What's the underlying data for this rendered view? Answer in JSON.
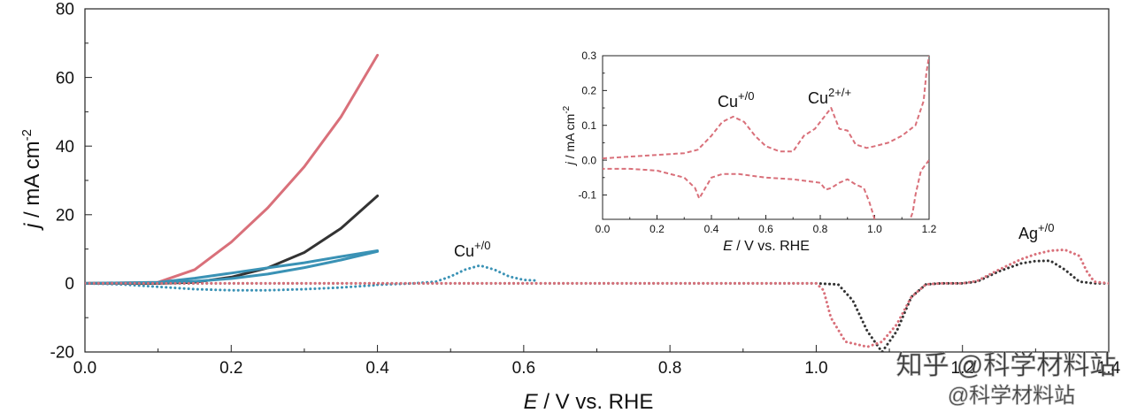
{
  "chart_data": [
    {
      "type": "line",
      "xlabel_italic": "E",
      "xlabel_rest": " / V vs. RHE",
      "ylabel_italic": "j",
      "ylabel_rest": " / mA cm",
      "ylabel_sup": "-2",
      "xlim": [
        0.0,
        1.4
      ],
      "ylim": [
        -20,
        80
      ],
      "xticks": [
        0.0,
        0.2,
        0.4,
        0.6,
        0.8,
        1.0,
        1.2,
        1.4
      ],
      "xtick_labels": [
        "0.0",
        "0.2",
        "0.4",
        "0.6",
        "0.8",
        "1.0",
        "1.2",
        "1.4"
      ],
      "yticks": [
        -20,
        0,
        20,
        40,
        60,
        80
      ],
      "ytick_labels": [
        "-20",
        "0",
        "20",
        "40",
        "60",
        "80"
      ],
      "colors": {
        "red": "#d9707a",
        "black": "#333333",
        "blue": "#3a92b5"
      },
      "annotations": [
        {
          "text": "Cu",
          "sup": "+/0",
          "x": 0.535,
          "y": 8
        },
        {
          "text": "Ag",
          "sup": "+/0",
          "x": 1.34,
          "y": 13
        }
      ],
      "series": [
        {
          "name": "red-solid",
          "color": "red",
          "style": "solid",
          "x": [
            0.0,
            0.1,
            0.15,
            0.2,
            0.25,
            0.3,
            0.35,
            0.4
          ],
          "y": [
            0.0,
            0.3,
            4.0,
            12.0,
            22.0,
            34.0,
            48.5,
            66.5
          ]
        },
        {
          "name": "black-solid",
          "color": "black",
          "style": "solid",
          "x": [
            0.0,
            0.1,
            0.15,
            0.2,
            0.25,
            0.3,
            0.35,
            0.4
          ],
          "y": [
            0.0,
            0.0,
            0.3,
            1.8,
            4.5,
            9.0,
            16.0,
            25.5
          ]
        },
        {
          "name": "blue-solid",
          "color": "blue",
          "style": "solid",
          "x": [
            0.0,
            0.1,
            0.15,
            0.2,
            0.25,
            0.3,
            0.35,
            0.4
          ],
          "y": [
            0.0,
            0.3,
            1.5,
            3.0,
            4.5,
            6.0,
            7.8,
            9.5
          ]
        },
        {
          "name": "blue-solid-return",
          "color": "blue",
          "style": "solid",
          "x": [
            0.4,
            0.35,
            0.3,
            0.25,
            0.2,
            0.15,
            0.1
          ],
          "y": [
            9.3,
            6.8,
            4.6,
            2.7,
            1.4,
            0.6,
            0.2
          ]
        },
        {
          "name": "blue-dotted-cathodic",
          "color": "blue",
          "style": "dotted",
          "x": [
            0.0,
            0.05,
            0.1,
            0.15,
            0.2,
            0.25,
            0.3,
            0.35,
            0.4
          ],
          "y": [
            0.0,
            -0.3,
            -1.0,
            -1.7,
            -2.0,
            -2.0,
            -1.7,
            -1.2,
            -0.5
          ]
        },
        {
          "name": "blue-dotted-anodic",
          "color": "blue",
          "style": "dotted",
          "x": [
            0.4,
            0.45,
            0.48,
            0.5,
            0.52,
            0.54,
            0.56,
            0.58,
            0.6,
            0.62
          ],
          "y": [
            -0.4,
            0.0,
            0.5,
            2.0,
            4.0,
            5.2,
            4.0,
            2.0,
            1.0,
            0.8
          ]
        },
        {
          "name": "black-dotted",
          "color": "black",
          "style": "dotted",
          "x": [
            0.0,
            0.2,
            0.4,
            0.6,
            0.8,
            1.0,
            1.03,
            1.05,
            1.07,
            1.09,
            1.11,
            1.13,
            1.15,
            1.17,
            1.2,
            1.22,
            1.25,
            1.28,
            1.3,
            1.32,
            1.34,
            1.36,
            1.38,
            1.4
          ],
          "y": [
            0.0,
            0.0,
            0.0,
            0.0,
            0.0,
            0.0,
            -0.3,
            -5.0,
            -14.0,
            -20.0,
            -14.0,
            -4.0,
            -0.3,
            0.0,
            0.0,
            0.5,
            3.5,
            5.8,
            6.5,
            6.6,
            4.0,
            0.5,
            0.0,
            0.0
          ]
        },
        {
          "name": "red-dotted",
          "color": "red",
          "style": "dotted",
          "x": [
            0.0,
            0.2,
            0.4,
            0.6,
            0.8,
            1.0,
            1.01,
            1.02,
            1.04,
            1.07,
            1.09,
            1.11,
            1.13,
            1.15,
            1.17,
            1.2,
            1.22,
            1.25,
            1.28,
            1.3,
            1.32,
            1.34,
            1.36,
            1.37,
            1.38,
            1.4
          ],
          "y": [
            0.0,
            0.0,
            0.0,
            0.0,
            0.0,
            0.0,
            -2.0,
            -10.0,
            -17.0,
            -18.5,
            -17.0,
            -12.0,
            -4.0,
            -0.3,
            0.0,
            0.0,
            0.7,
            4.0,
            7.0,
            8.5,
            9.5,
            9.8,
            8.0,
            3.5,
            0.5,
            0.0
          ]
        }
      ]
    },
    {
      "type": "line",
      "name": "inset",
      "xlabel_italic": "E",
      "xlabel_rest": " / V vs. RHE",
      "ylabel_italic": "j",
      "ylabel_rest": " / mA cm",
      "ylabel_sup": "-2",
      "xlim": [
        0.0,
        1.2
      ],
      "ylim": [
        -0.17,
        0.3
      ],
      "xticks": [
        0.0,
        0.2,
        0.4,
        0.6,
        0.8,
        1.0,
        1.2
      ],
      "xtick_labels": [
        "0.0",
        "0.2",
        "0.4",
        "0.6",
        "0.8",
        "1.0",
        "1.2"
      ],
      "yticks": [
        -0.1,
        0.0,
        0.1,
        0.2,
        0.3
      ],
      "ytick_labels": [
        "-0.1",
        "0.0",
        "0.1",
        "0.2",
        "0.3"
      ],
      "annotations": [
        {
          "text": "Cu",
          "sup": "+/0",
          "x": 0.5,
          "y": 0.155
        },
        {
          "text": "Cu",
          "sup": "2+/+",
          "x": 0.83,
          "y": 0.18
        }
      ],
      "series": [
        {
          "name": "inset-anodic",
          "color": "red",
          "style": "dashed",
          "x": [
            0.0,
            0.1,
            0.2,
            0.3,
            0.35,
            0.4,
            0.44,
            0.48,
            0.52,
            0.56,
            0.6,
            0.65,
            0.7,
            0.74,
            0.78,
            0.81,
            0.84,
            0.87,
            0.9,
            0.93,
            0.97,
            1.0,
            1.05,
            1.1,
            1.15,
            1.18,
            1.19,
            1.2
          ],
          "y": [
            0.005,
            0.01,
            0.015,
            0.02,
            0.03,
            0.07,
            0.11,
            0.125,
            0.11,
            0.07,
            0.04,
            0.025,
            0.025,
            0.07,
            0.09,
            0.12,
            0.15,
            0.09,
            0.085,
            0.045,
            0.035,
            0.04,
            0.05,
            0.07,
            0.1,
            0.17,
            0.25,
            0.3
          ]
        },
        {
          "name": "inset-cathodic",
          "color": "red",
          "style": "dashed",
          "x": [
            1.2,
            1.17,
            1.15,
            1.14,
            1.13
          ],
          "y": [
            0.0,
            -0.03,
            -0.1,
            -0.15,
            -0.17
          ]
        },
        {
          "name": "inset-cathodic-2",
          "color": "red",
          "style": "dashed",
          "x": [
            1.0,
            0.98,
            0.96,
            0.93,
            0.9,
            0.87,
            0.84,
            0.82,
            0.8,
            0.75,
            0.7,
            0.6,
            0.5,
            0.44,
            0.4,
            0.37,
            0.355,
            0.34,
            0.3,
            0.2,
            0.1,
            0.0
          ],
          "y": [
            -0.17,
            -0.12,
            -0.08,
            -0.07,
            -0.055,
            -0.065,
            -0.08,
            -0.085,
            -0.065,
            -0.06,
            -0.055,
            -0.05,
            -0.04,
            -0.04,
            -0.05,
            -0.09,
            -0.11,
            -0.08,
            -0.05,
            -0.03,
            -0.025,
            -0.025
          ]
        }
      ]
    }
  ],
  "watermark": {
    "line1": "知乎 @科学材料站",
    "line2": "@科学材料站"
  }
}
